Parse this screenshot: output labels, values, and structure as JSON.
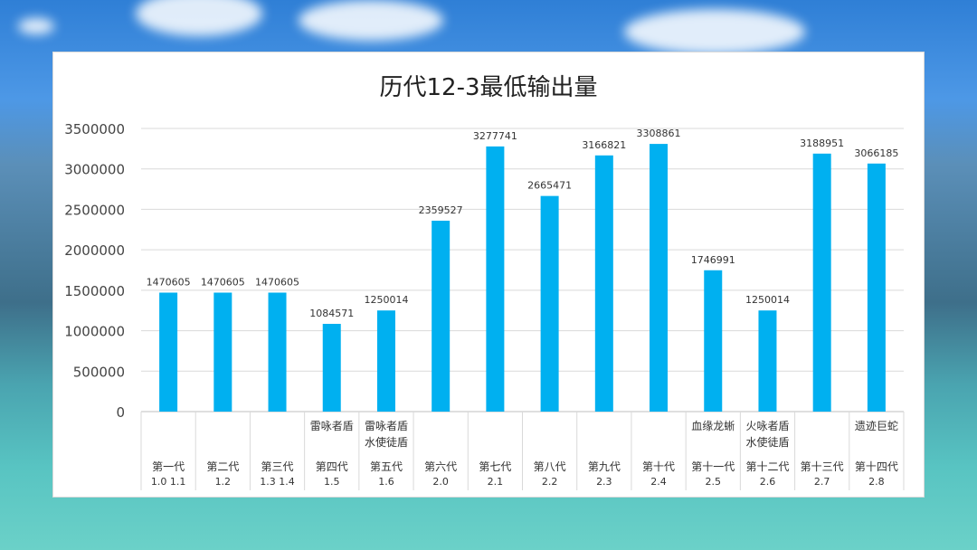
{
  "chart_data": {
    "type": "bar",
    "title": "历代12-3最低输出量",
    "ylim": [
      0,
      3500000
    ],
    "yticks": [
      0,
      500000,
      1000000,
      1500000,
      2000000,
      2500000,
      3000000,
      3500000
    ],
    "bar_color": "#00b0f0",
    "categories": [
      {
        "top": "",
        "name": "第一代",
        "version": "1.0 1.1"
      },
      {
        "top": "",
        "name": "第二代",
        "version": "1.2"
      },
      {
        "top": "",
        "name": "第三代",
        "version": "1.3 1.4"
      },
      {
        "top": "雷咏者盾",
        "name": "第四代",
        "version": "1.5"
      },
      {
        "top": "雷咏者盾\n水使徒盾",
        "name": "第五代",
        "version": "1.6"
      },
      {
        "top": "",
        "name": "第六代",
        "version": "2.0"
      },
      {
        "top": "",
        "name": "第七代",
        "version": "2.1"
      },
      {
        "top": "",
        "name": "第八代",
        "version": "2.2"
      },
      {
        "top": "",
        "name": "第九代",
        "version": "2.3"
      },
      {
        "top": "",
        "name": "第十代",
        "version": "2.4"
      },
      {
        "top": "血缘龙蜥",
        "name": "第十一代",
        "version": "2.5"
      },
      {
        "top": "火咏者盾\n水使徒盾",
        "name": "第十二代",
        "version": "2.6"
      },
      {
        "top": "",
        "name": "第十三代",
        "version": "2.7"
      },
      {
        "top": "遗迹巨蛇",
        "name": "第十四代",
        "version": "2.8"
      }
    ],
    "values": [
      1470605,
      1470605,
      1470605,
      1084571,
      1250014,
      2359527,
      3277741,
      2665471,
      3166821,
      3308861,
      1746991,
      1250014,
      3188951,
      3066185
    ]
  }
}
